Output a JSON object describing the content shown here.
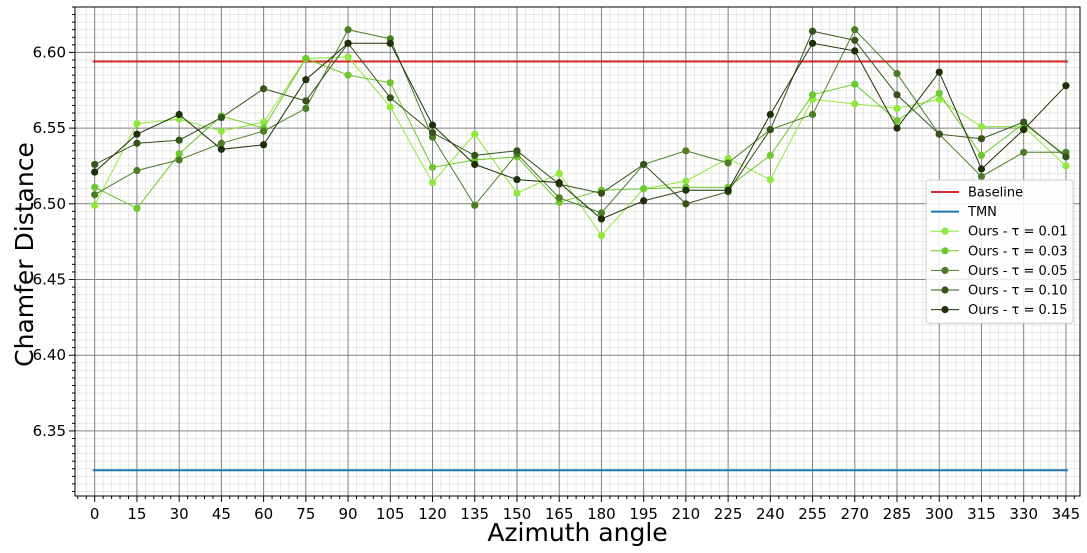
{
  "chart_data": {
    "type": "line",
    "xlabel": "Azimuth angle",
    "ylabel": "Chamfer Distance",
    "x": [
      0,
      15,
      30,
      45,
      60,
      75,
      90,
      105,
      120,
      135,
      150,
      165,
      180,
      195,
      210,
      225,
      240,
      255,
      270,
      285,
      300,
      315,
      330,
      345
    ],
    "xlim": [
      -7,
      350
    ],
    "ylim": [
      6.307,
      6.63
    ],
    "yticks": [
      6.35,
      6.4,
      6.45,
      6.5,
      6.55,
      6.6
    ],
    "ytick_labels": [
      "6.35",
      "6.40",
      "6.45",
      "6.50",
      "6.55",
      "6.60"
    ],
    "grid": "major and minor",
    "legend_position": "center-right",
    "reference_lines": [
      {
        "name": "Baseline",
        "value": 6.594,
        "color": "#d62728"
      },
      {
        "name": "TMN",
        "value": 6.324,
        "color": "#1f77b4"
      }
    ],
    "series": [
      {
        "name": "Ours - τ = 0.01",
        "color": "#8fe83c",
        "values": [
          6.499,
          6.553,
          6.556,
          6.548,
          6.554,
          6.596,
          6.597,
          6.564,
          6.514,
          6.546,
          6.507,
          6.52,
          6.479,
          6.51,
          6.515,
          6.53,
          6.516,
          6.569,
          6.566,
          6.563,
          6.569,
          6.551,
          6.551,
          6.525
        ]
      },
      {
        "name": "Ours - τ = 0.03",
        "color": "#6cc82c",
        "values": [
          6.511,
          6.497,
          6.533,
          6.558,
          6.55,
          6.596,
          6.585,
          6.58,
          6.524,
          6.529,
          6.531,
          6.501,
          6.509,
          6.51,
          6.511,
          6.511,
          6.532,
          6.572,
          6.579,
          6.555,
          6.573,
          6.532,
          6.553,
          6.532
        ]
      },
      {
        "name": "Ours - τ = 0.05",
        "color": "#4c7e26",
        "values": [
          6.506,
          6.522,
          6.529,
          6.54,
          6.548,
          6.563,
          6.615,
          6.609,
          6.544,
          6.499,
          6.533,
          6.504,
          6.494,
          6.526,
          6.535,
          6.527,
          6.549,
          6.559,
          6.615,
          6.586,
          6.546,
          6.518,
          6.534,
          6.534
        ]
      },
      {
        "name": "Ours - τ = 0.10",
        "color": "#36541a",
        "values": [
          6.526,
          6.54,
          6.542,
          6.557,
          6.576,
          6.568,
          6.606,
          6.57,
          6.547,
          6.532,
          6.535,
          6.513,
          6.507,
          6.526,
          6.5,
          6.508,
          6.549,
          6.614,
          6.608,
          6.572,
          6.546,
          6.543,
          6.554,
          6.531
        ]
      },
      {
        "name": "Ours - τ = 0.15",
        "color": "#1e3008",
        "values": [
          6.521,
          6.546,
          6.559,
          6.536,
          6.539,
          6.582,
          6.606,
          6.606,
          6.552,
          6.526,
          6.516,
          6.514,
          6.49,
          6.502,
          6.509,
          6.509,
          6.559,
          6.606,
          6.601,
          6.55,
          6.587,
          6.523,
          6.549,
          6.578
        ]
      }
    ]
  }
}
